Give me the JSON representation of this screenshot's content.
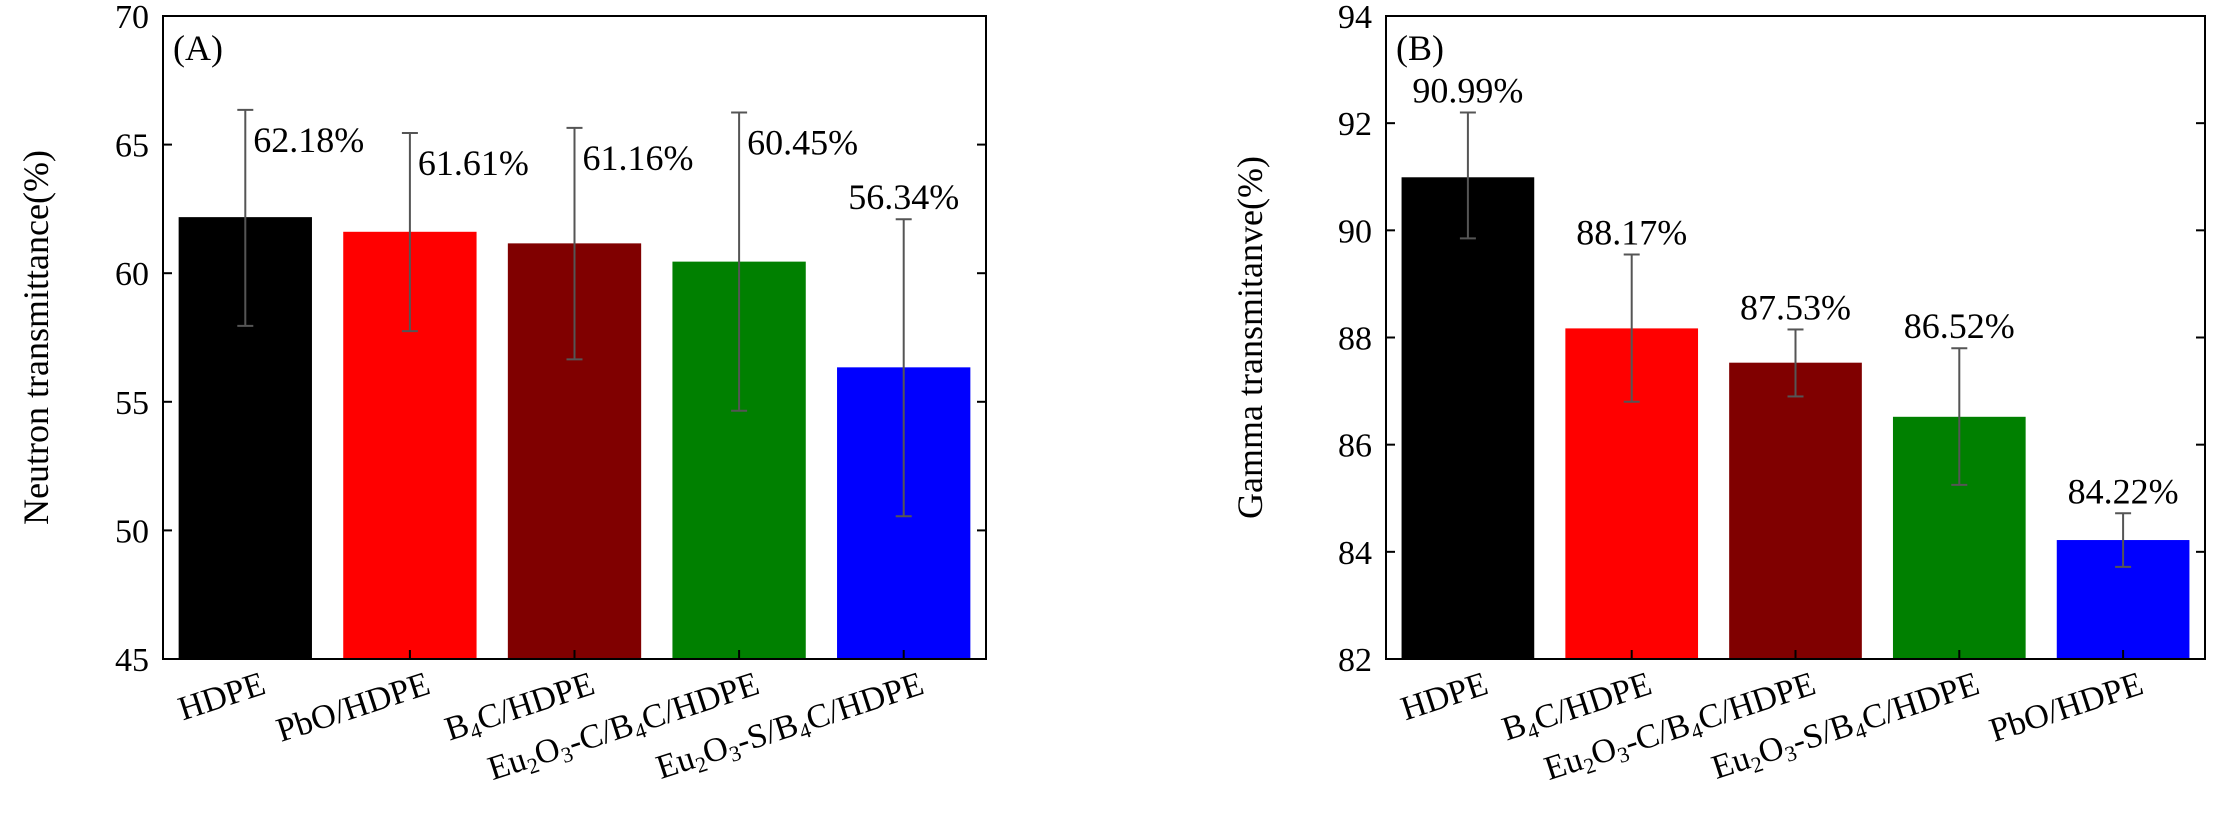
{
  "chart_data": [
    {
      "type": "bar",
      "panel_label": "(A)",
      "ylabel": "Neutron transmittance(%)",
      "xlabel": "",
      "ylim": [
        45,
        70
      ],
      "yticks": [
        45,
        50,
        55,
        60,
        65,
        70
      ],
      "categories": [
        "HDPE",
        "PbO/HDPE",
        "B4C/HDPE",
        "Eu2O3-C/B4C/HDPE",
        "Eu2O3-S/B4C/HDPE"
      ],
      "category_display": [
        [
          {
            "t": "HDPE"
          }
        ],
        [
          {
            "t": "PbO/HDPE"
          }
        ],
        [
          {
            "t": "B"
          },
          {
            "t": "4",
            "sub": true
          },
          {
            "t": "C/HDPE"
          }
        ],
        [
          {
            "t": "Eu"
          },
          {
            "t": "2",
            "sub": true
          },
          {
            "t": "O"
          },
          {
            "t": "3",
            "sub": true
          },
          {
            "t": "-C/B"
          },
          {
            "t": "4",
            "sub": true
          },
          {
            "t": "C/HDPE"
          }
        ],
        [
          {
            "t": "Eu"
          },
          {
            "t": "2",
            "sub": true
          },
          {
            "t": "O"
          },
          {
            "t": "3",
            "sub": true
          },
          {
            "t": "-S/B"
          },
          {
            "t": "4",
            "sub": true
          },
          {
            "t": "C/HDPE"
          }
        ]
      ],
      "values": [
        62.18,
        61.61,
        61.16,
        60.45,
        56.34
      ],
      "error_low": [
        57.95,
        57.75,
        56.65,
        54.65,
        50.55
      ],
      "error_high": [
        66.35,
        65.45,
        65.65,
        66.25,
        62.1
      ],
      "value_labels": [
        "62.18%",
        "61.61%",
        "61.16%",
        "60.45%",
        "56.34%"
      ],
      "colors": [
        "#000000",
        "#ff0000",
        "#800000",
        "#008000",
        "#0000ff"
      ]
    },
    {
      "type": "bar",
      "panel_label": "(B)",
      "ylabel": "Gamma transmitanve(%)",
      "xlabel": "",
      "ylim": [
        82,
        94
      ],
      "yticks": [
        82,
        84,
        86,
        88,
        90,
        92,
        94
      ],
      "categories": [
        "HDPE",
        "B4C/HDPE",
        "Eu2O3-C/B4C/HDPE",
        "Eu2O3-S/B4C/HDPE",
        "PbO/HDPE"
      ],
      "category_display": [
        [
          {
            "t": "HDPE"
          }
        ],
        [
          {
            "t": "B"
          },
          {
            "t": "4",
            "sub": true
          },
          {
            "t": "C/HDPE"
          }
        ],
        [
          {
            "t": "Eu"
          },
          {
            "t": "2",
            "sub": true
          },
          {
            "t": "O"
          },
          {
            "t": "3",
            "sub": true
          },
          {
            "t": "-C/B"
          },
          {
            "t": "4",
            "sub": true
          },
          {
            "t": "C/HDPE"
          }
        ],
        [
          {
            "t": "Eu"
          },
          {
            "t": "2",
            "sub": true
          },
          {
            "t": "O"
          },
          {
            "t": "3",
            "sub": true
          },
          {
            "t": "-S/B"
          },
          {
            "t": "4",
            "sub": true
          },
          {
            "t": "C/HDPE"
          }
        ],
        [
          {
            "t": "PbO/HDPE"
          }
        ]
      ],
      "values": [
        90.99,
        88.17,
        87.53,
        86.52,
        84.22
      ],
      "error_low": [
        89.85,
        86.8,
        86.9,
        85.25,
        83.72
      ],
      "error_high": [
        92.2,
        89.55,
        88.15,
        87.8,
        84.72
      ],
      "value_labels": [
        "90.99%",
        "88.17%",
        "87.53%",
        "86.52%",
        "84.22%"
      ],
      "colors": [
        "#000000",
        "#ff0000",
        "#800000",
        "#008000",
        "#0000ff"
      ]
    }
  ]
}
